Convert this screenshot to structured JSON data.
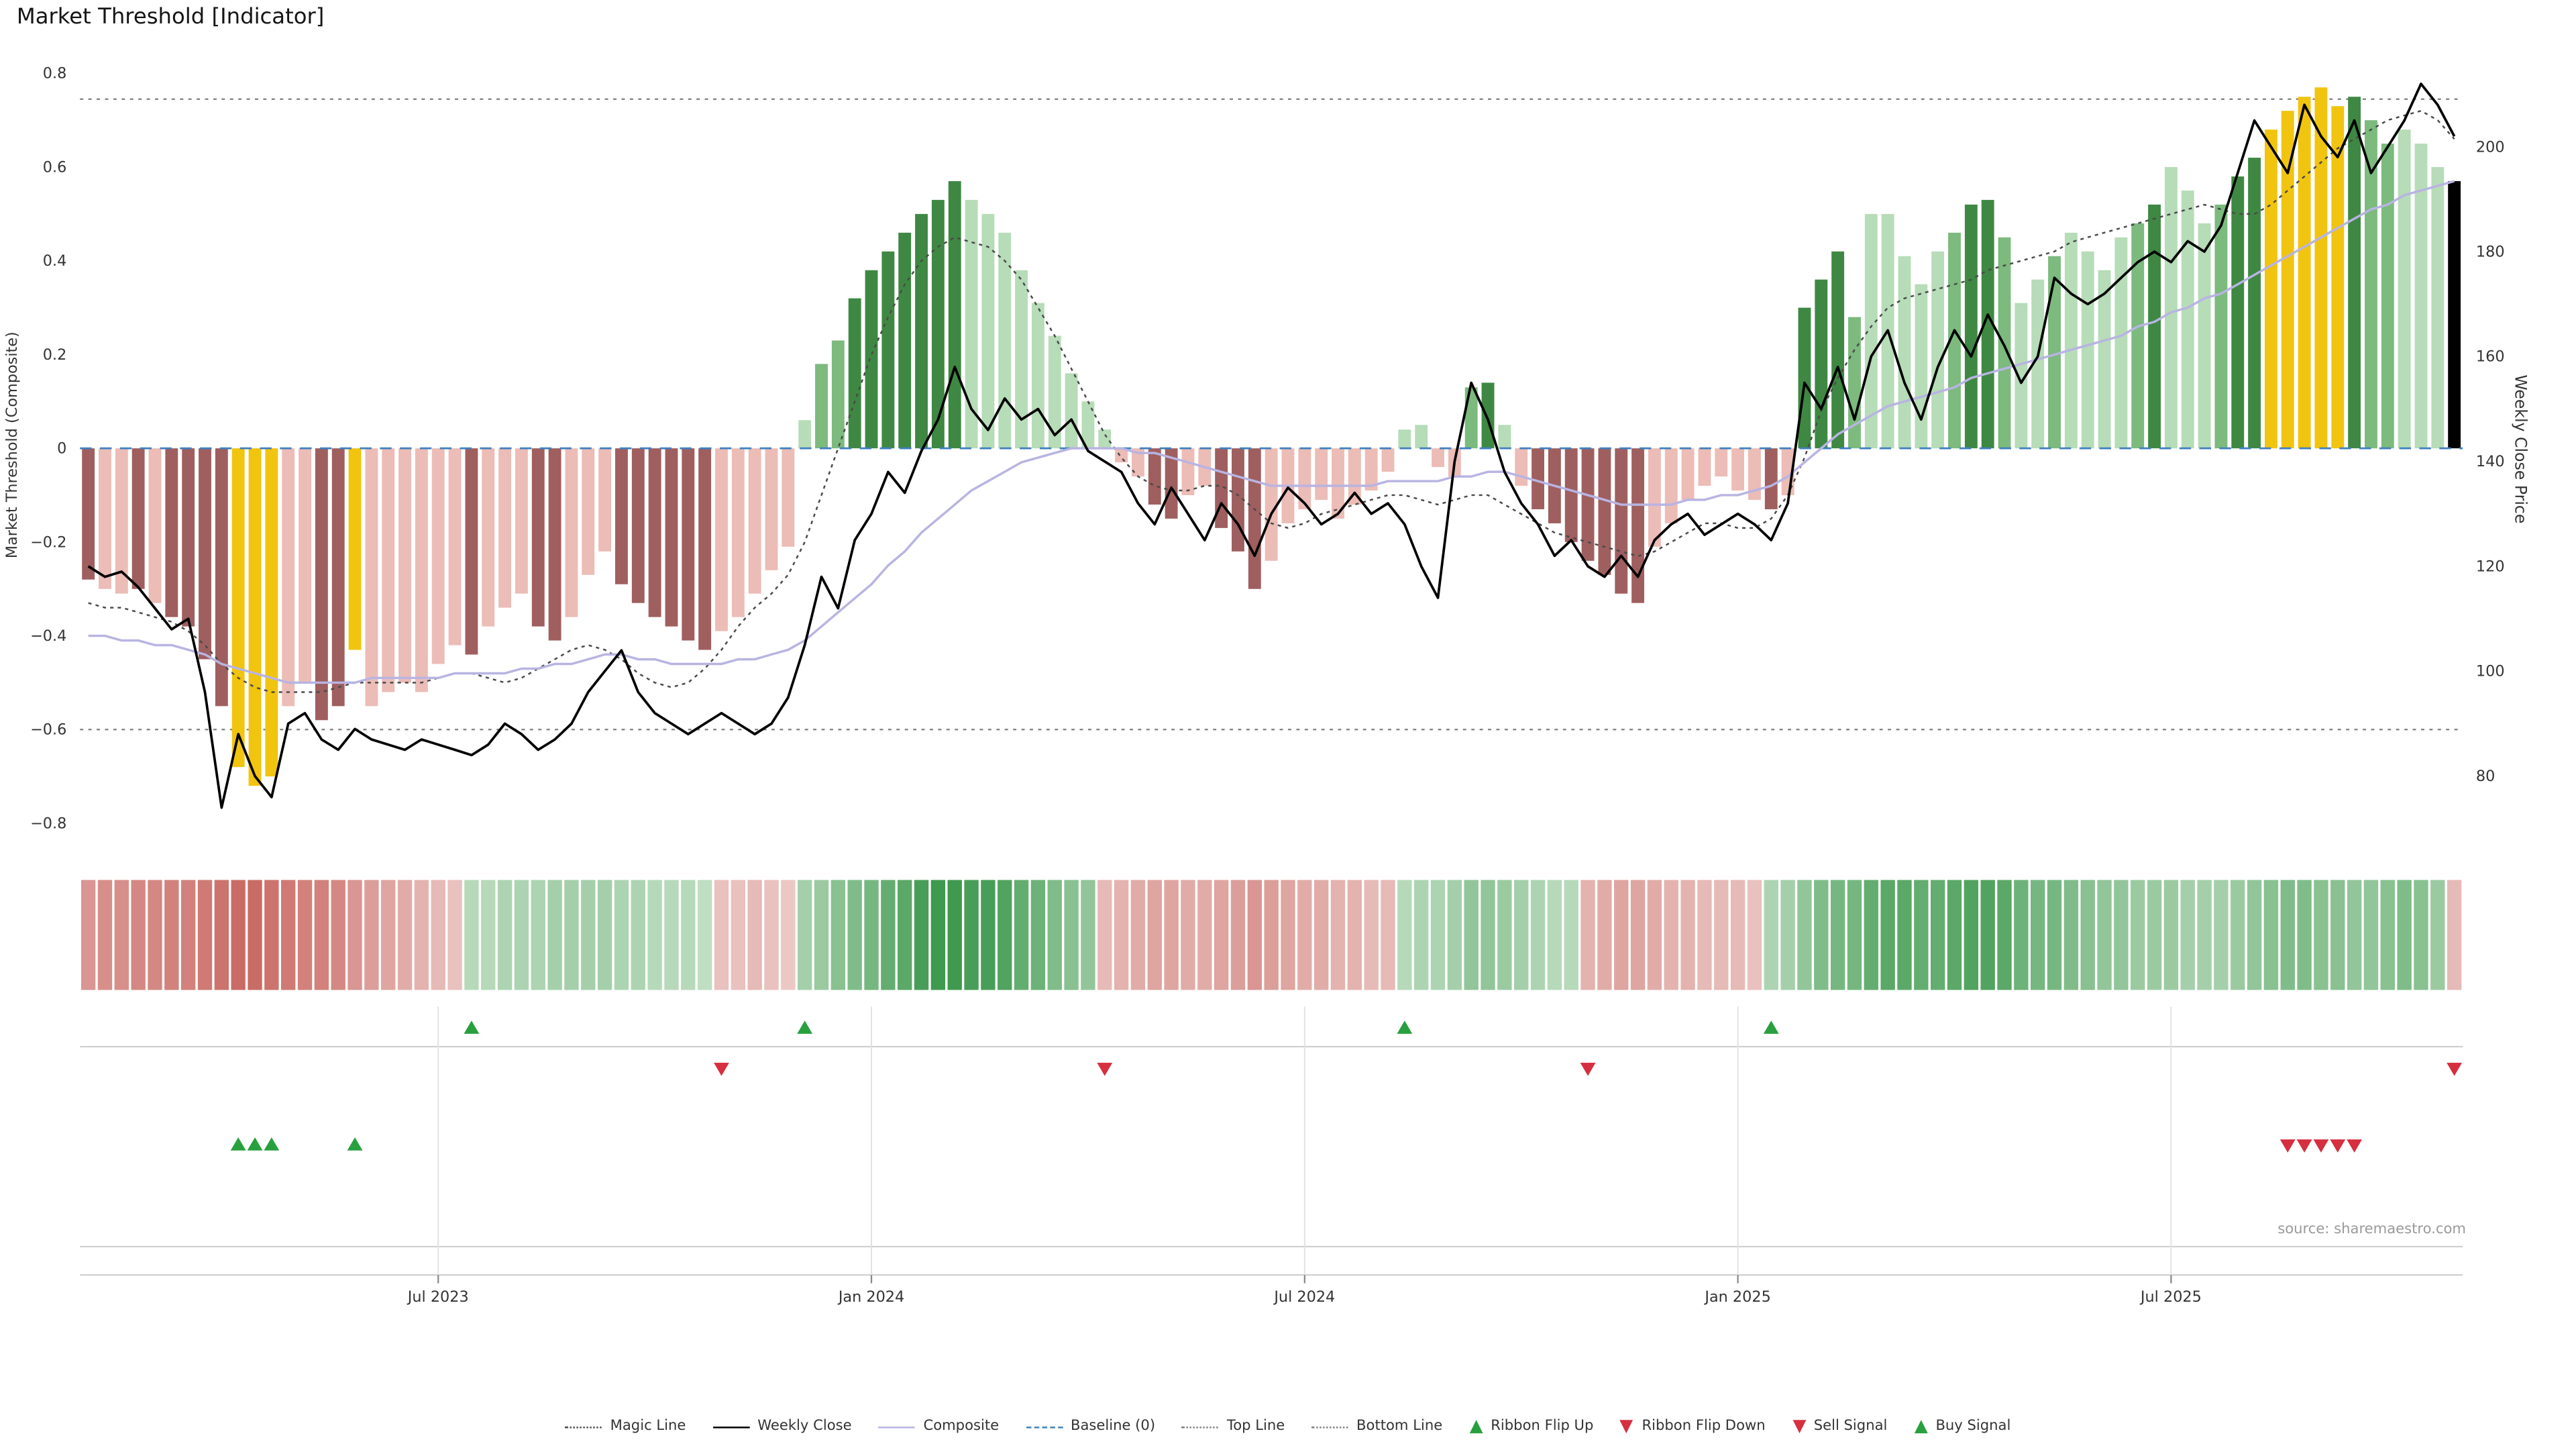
{
  "title": "Market Threshold [Indicator]",
  "source": "source: sharemaestro.com",
  "axes": {
    "left_label": "Market Threshold (Composite)",
    "right_label": "Weekly Close Price",
    "left_ticks": [
      {
        "v": 0.8,
        "label": "0.8"
      },
      {
        "v": 0.6,
        "label": "0.6"
      },
      {
        "v": 0.4,
        "label": "0.4"
      },
      {
        "v": 0.2,
        "label": "0.2"
      },
      {
        "v": 0.0,
        "label": "0"
      },
      {
        "v": -0.2,
        "label": "−0.2"
      },
      {
        "v": -0.4,
        "label": "−0.4"
      },
      {
        "v": -0.6,
        "label": "−0.6"
      },
      {
        "v": -0.8,
        "label": "−0.8"
      }
    ],
    "right_ticks": [
      {
        "v": 200,
        "label": "200"
      },
      {
        "v": 180,
        "label": "180"
      },
      {
        "v": 160,
        "label": "160"
      },
      {
        "v": 140,
        "label": "140"
      },
      {
        "v": 120,
        "label": "120"
      },
      {
        "v": 100,
        "label": "100"
      },
      {
        "v": 80,
        "label": "80"
      }
    ],
    "x_ticks": [
      {
        "week": 21,
        "label": "Jul 2023"
      },
      {
        "week": 47,
        "label": "Jan 2024"
      },
      {
        "week": 73,
        "label": "Jul 2024"
      },
      {
        "week": 99,
        "label": "Jan 2025"
      },
      {
        "week": 125,
        "label": "Jul 2025"
      }
    ]
  },
  "colors": {
    "bar_palette": {
      "R": "#9f5f5f",
      "r": "#ecbcb7",
      "Y": "#f1c40f",
      "G": "#3f8843",
      "g": "#7cba7e",
      "l": "#b7dcb8"
    },
    "weekly_close": "#000000",
    "composite": "#b8b4e2",
    "magic": "#4a4a4a",
    "baseline": "#3f7fbf",
    "guide": "#7f7f7f",
    "flip_up": "#28a03e",
    "flip_down": "#d62f3f",
    "ribbon_pos": "#2d8f3f",
    "ribbon_neg": "#c25750",
    "ribbon_pos_base": "#e4f2e3",
    "ribbon_neg_base": "#f6e4e2",
    "grid": "#cccccc",
    "grid_light": "#e2e2e2",
    "text": "#333333",
    "muted": "#9a9a9a"
  },
  "legend": {
    "items": [
      {
        "label": "Magic Line",
        "icon": "dotted-line",
        "color_key": "magic"
      },
      {
        "label": "Weekly Close",
        "icon": "solid-line",
        "color_key": "weekly_close"
      },
      {
        "label": "Composite",
        "icon": "solid-line",
        "color_key": "composite"
      },
      {
        "label": "Baseline (0)",
        "icon": "dashed-line",
        "color_key": "baseline"
      },
      {
        "label": "Top Line",
        "icon": "dotted-line",
        "color_key": "guide"
      },
      {
        "label": "Bottom Line",
        "icon": "dotted-line",
        "color_key": "guide"
      },
      {
        "label": "Ribbon Flip Up",
        "icon": "triangle-up",
        "color_key": "flip_up"
      },
      {
        "label": "Ribbon Flip Down",
        "icon": "triangle-down",
        "color_key": "flip_down"
      },
      {
        "label": "Sell Signal",
        "icon": "triangle-down",
        "color_key": "flip_down"
      },
      {
        "label": "Buy Signal",
        "icon": "triangle-up",
        "color_key": "flip_up"
      }
    ]
  },
  "chart_data": {
    "type": "bar+line+heatmap",
    "x_unit": "week",
    "n": 143,
    "left_ylim": [
      -0.8,
      0.8
    ],
    "right_ylim": [
      71,
      214
    ],
    "top_line": 0.745,
    "bottom_line": -0.6,
    "baseline": 0,
    "series": {
      "threshold_bars": {
        "name": "Market Threshold (Composite) bars",
        "values": [
          -0.28,
          -0.3,
          -0.31,
          -0.3,
          -0.33,
          -0.36,
          -0.38,
          -0.45,
          -0.55,
          -0.68,
          -0.72,
          -0.7,
          -0.55,
          -0.5,
          -0.58,
          -0.55,
          -0.43,
          -0.55,
          -0.52,
          -0.5,
          -0.52,
          -0.46,
          -0.42,
          -0.44,
          -0.38,
          -0.34,
          -0.31,
          -0.38,
          -0.41,
          -0.36,
          -0.27,
          -0.22,
          -0.29,
          -0.33,
          -0.36,
          -0.38,
          -0.41,
          -0.43,
          -0.39,
          -0.36,
          -0.31,
          -0.26,
          -0.21,
          0.06,
          0.18,
          0.23,
          0.32,
          0.38,
          0.42,
          0.46,
          0.5,
          0.53,
          0.57,
          0.53,
          0.5,
          0.46,
          0.38,
          0.31,
          0.24,
          0.16,
          0.1,
          0.04,
          -0.03,
          -0.06,
          -0.12,
          -0.15,
          -0.1,
          -0.08,
          -0.17,
          -0.22,
          -0.3,
          -0.24,
          -0.16,
          -0.13,
          -0.11,
          -0.15,
          -0.12,
          -0.09,
          -0.05,
          0.04,
          0.05,
          -0.04,
          -0.06,
          0.13,
          0.14,
          0.05,
          -0.08,
          -0.13,
          -0.16,
          -0.2,
          -0.24,
          -0.27,
          -0.31,
          -0.33,
          -0.21,
          -0.16,
          -0.11,
          -0.08,
          -0.06,
          -0.09,
          -0.11,
          -0.13,
          -0.1,
          0.3,
          0.36,
          0.42,
          0.28,
          0.5,
          0.5,
          0.41,
          0.35,
          0.42,
          0.46,
          0.52,
          0.53,
          0.45,
          0.31,
          0.36,
          0.41,
          0.46,
          0.42,
          0.38,
          0.45,
          0.48,
          0.52,
          0.6,
          0.55,
          0.48,
          0.52,
          0.58,
          0.62,
          0.68,
          0.72,
          0.75,
          0.77,
          0.73,
          0.75,
          0.7,
          0.65,
          0.68,
          0.65,
          0.6,
          0.57
        ],
        "color_codes": "RrrRrRRRRYYYrrRRYrrrrrrRrrrRRrrrRRRRRRrrrrrlggGGGGGGGlllllllllrrRRrrRRRrrrrrrrrllrrgGlrRRRRRRRrrrrrrrRrGGGglllllgGGgllgllllgGlllgGGYYYYYGgglll"
      },
      "weekly_close": {
        "name": "Weekly Close",
        "values": [
          120,
          118,
          119,
          116,
          112,
          108,
          110,
          96,
          74,
          88,
          80,
          76,
          90,
          92,
          87,
          85,
          89,
          87,
          86,
          85,
          87,
          86,
          85,
          84,
          86,
          90,
          88,
          85,
          87,
          90,
          96,
          100,
          104,
          96,
          92,
          90,
          88,
          90,
          92,
          90,
          88,
          90,
          95,
          105,
          118,
          112,
          125,
          130,
          138,
          134,
          142,
          148,
          158,
          150,
          146,
          152,
          148,
          150,
          145,
          148,
          142,
          140,
          138,
          132,
          128,
          135,
          130,
          125,
          132,
          128,
          122,
          130,
          135,
          132,
          128,
          130,
          134,
          130,
          132,
          128,
          120,
          114,
          140,
          155,
          148,
          138,
          132,
          128,
          122,
          125,
          120,
          118,
          122,
          118,
          125,
          128,
          130,
          126,
          128,
          130,
          128,
          125,
          132,
          155,
          150,
          158,
          148,
          160,
          165,
          155,
          148,
          158,
          165,
          160,
          168,
          162,
          155,
          160,
          175,
          172,
          170,
          172,
          175,
          178,
          180,
          178,
          182,
          180,
          185,
          195,
          205,
          200,
          195,
          208,
          202,
          198,
          205,
          195,
          200,
          205,
          212,
          208,
          202
        ]
      },
      "composite": {
        "name": "Composite",
        "values": [
          -0.4,
          -0.4,
          -0.41,
          -0.41,
          -0.42,
          -0.42,
          -0.43,
          -0.44,
          -0.46,
          -0.47,
          -0.48,
          -0.49,
          -0.5,
          -0.5,
          -0.5,
          -0.5,
          -0.5,
          -0.49,
          -0.49,
          -0.49,
          -0.49,
          -0.49,
          -0.48,
          -0.48,
          -0.48,
          -0.48,
          -0.47,
          -0.47,
          -0.46,
          -0.46,
          -0.45,
          -0.44,
          -0.44,
          -0.45,
          -0.45,
          -0.46,
          -0.46,
          -0.46,
          -0.46,
          -0.45,
          -0.45,
          -0.44,
          -0.43,
          -0.41,
          -0.38,
          -0.35,
          -0.32,
          -0.29,
          -0.25,
          -0.22,
          -0.18,
          -0.15,
          -0.12,
          -0.09,
          -0.07,
          -0.05,
          -0.03,
          -0.02,
          -0.01,
          0.0,
          0.0,
          0.0,
          0.0,
          -0.01,
          -0.01,
          -0.02,
          -0.03,
          -0.04,
          -0.05,
          -0.06,
          -0.07,
          -0.08,
          -0.08,
          -0.08,
          -0.08,
          -0.08,
          -0.08,
          -0.08,
          -0.07,
          -0.07,
          -0.07,
          -0.07,
          -0.06,
          -0.06,
          -0.05,
          -0.05,
          -0.06,
          -0.07,
          -0.08,
          -0.09,
          -0.1,
          -0.11,
          -0.12,
          -0.12,
          -0.12,
          -0.12,
          -0.11,
          -0.11,
          -0.1,
          -0.1,
          -0.09,
          -0.08,
          -0.06,
          -0.03,
          0.0,
          0.03,
          0.05,
          0.07,
          0.09,
          0.1,
          0.11,
          0.12,
          0.13,
          0.15,
          0.16,
          0.17,
          0.18,
          0.19,
          0.2,
          0.21,
          0.22,
          0.23,
          0.24,
          0.26,
          0.27,
          0.29,
          0.3,
          0.32,
          0.33,
          0.35,
          0.37,
          0.39,
          0.41,
          0.43,
          0.45,
          0.47,
          0.49,
          0.51,
          0.52,
          0.54,
          0.55,
          0.56,
          0.57
        ]
      },
      "magic_line": {
        "name": "Magic Line",
        "values": [
          -0.33,
          -0.34,
          -0.34,
          -0.35,
          -0.36,
          -0.37,
          -0.39,
          -0.42,
          -0.46,
          -0.49,
          -0.51,
          -0.52,
          -0.52,
          -0.52,
          -0.52,
          -0.51,
          -0.5,
          -0.5,
          -0.5,
          -0.5,
          -0.5,
          -0.49,
          -0.48,
          -0.48,
          -0.49,
          -0.5,
          -0.49,
          -0.47,
          -0.45,
          -0.43,
          -0.42,
          -0.43,
          -0.45,
          -0.48,
          -0.5,
          -0.51,
          -0.5,
          -0.47,
          -0.43,
          -0.38,
          -0.34,
          -0.31,
          -0.27,
          -0.2,
          -0.1,
          0.0,
          0.1,
          0.2,
          0.28,
          0.35,
          0.4,
          0.43,
          0.45,
          0.44,
          0.43,
          0.4,
          0.36,
          0.3,
          0.24,
          0.17,
          0.1,
          0.03,
          -0.02,
          -0.06,
          -0.08,
          -0.09,
          -0.09,
          -0.08,
          -0.08,
          -0.1,
          -0.13,
          -0.16,
          -0.17,
          -0.16,
          -0.14,
          -0.13,
          -0.12,
          -0.11,
          -0.1,
          -0.1,
          -0.11,
          -0.12,
          -0.11,
          -0.1,
          -0.1,
          -0.12,
          -0.14,
          -0.16,
          -0.18,
          -0.19,
          -0.2,
          -0.21,
          -0.22,
          -0.23,
          -0.22,
          -0.2,
          -0.18,
          -0.16,
          -0.16,
          -0.17,
          -0.17,
          -0.15,
          -0.1,
          -0.02,
          0.08,
          0.15,
          0.21,
          0.26,
          0.3,
          0.32,
          0.33,
          0.34,
          0.35,
          0.36,
          0.38,
          0.39,
          0.4,
          0.41,
          0.42,
          0.44,
          0.45,
          0.46,
          0.47,
          0.48,
          0.49,
          0.5,
          0.51,
          0.52,
          0.51,
          0.5,
          0.5,
          0.52,
          0.55,
          0.58,
          0.61,
          0.64,
          0.66,
          0.68,
          0.7,
          0.71,
          0.72,
          0.7,
          0.66
        ]
      },
      "ribbon": {
        "name": "Ribbon strip",
        "values": [
          -0.55,
          -0.6,
          -0.6,
          -0.65,
          -0.65,
          -0.7,
          -0.7,
          -0.75,
          -0.8,
          -0.85,
          -0.85,
          -0.8,
          -0.75,
          -0.7,
          -0.7,
          -0.65,
          -0.55,
          -0.5,
          -0.45,
          -0.4,
          -0.35,
          -0.3,
          -0.25,
          0.25,
          0.25,
          0.3,
          0.3,
          0.3,
          0.35,
          0.35,
          0.35,
          0.35,
          0.3,
          0.3,
          0.25,
          0.25,
          0.25,
          0.2,
          -0.25,
          -0.25,
          -0.3,
          -0.25,
          -0.2,
          0.35,
          0.4,
          0.5,
          0.55,
          0.6,
          0.7,
          0.75,
          0.85,
          0.9,
          0.9,
          0.85,
          0.85,
          0.8,
          0.7,
          0.65,
          0.55,
          0.5,
          0.45,
          -0.3,
          -0.35,
          -0.4,
          -0.45,
          -0.45,
          -0.4,
          -0.4,
          -0.45,
          -0.5,
          -0.55,
          -0.5,
          -0.45,
          -0.4,
          -0.4,
          -0.35,
          -0.35,
          -0.3,
          -0.3,
          0.25,
          0.3,
          0.3,
          0.35,
          0.45,
          0.45,
          0.4,
          0.35,
          0.3,
          0.25,
          0.25,
          -0.35,
          -0.4,
          -0.45,
          -0.45,
          -0.4,
          -0.35,
          -0.35,
          -0.3,
          -0.3,
          -0.3,
          -0.25,
          0.3,
          0.35,
          0.45,
          0.55,
          0.6,
          0.6,
          0.7,
          0.75,
          0.75,
          0.7,
          0.7,
          0.75,
          0.8,
          0.8,
          0.75,
          0.65,
          0.6,
          0.6,
          0.55,
          0.5,
          0.45,
          0.45,
          0.4,
          0.4,
          0.4,
          0.35,
          0.35,
          0.35,
          0.4,
          0.45,
          0.5,
          0.55,
          0.55,
          0.5,
          0.5,
          0.45,
          0.45,
          0.5,
          0.55,
          0.5,
          0.4,
          -0.3
        ]
      }
    },
    "signals": {
      "ribbon_flip_up_weeks": [
        23,
        43,
        79,
        101
      ],
      "ribbon_flip_down_weeks": [
        38,
        61,
        90,
        142
      ],
      "buy_signal_weeks": [
        9,
        10,
        11,
        16
      ],
      "sell_signal_weeks": [
        132,
        133,
        134,
        135,
        136
      ]
    }
  }
}
